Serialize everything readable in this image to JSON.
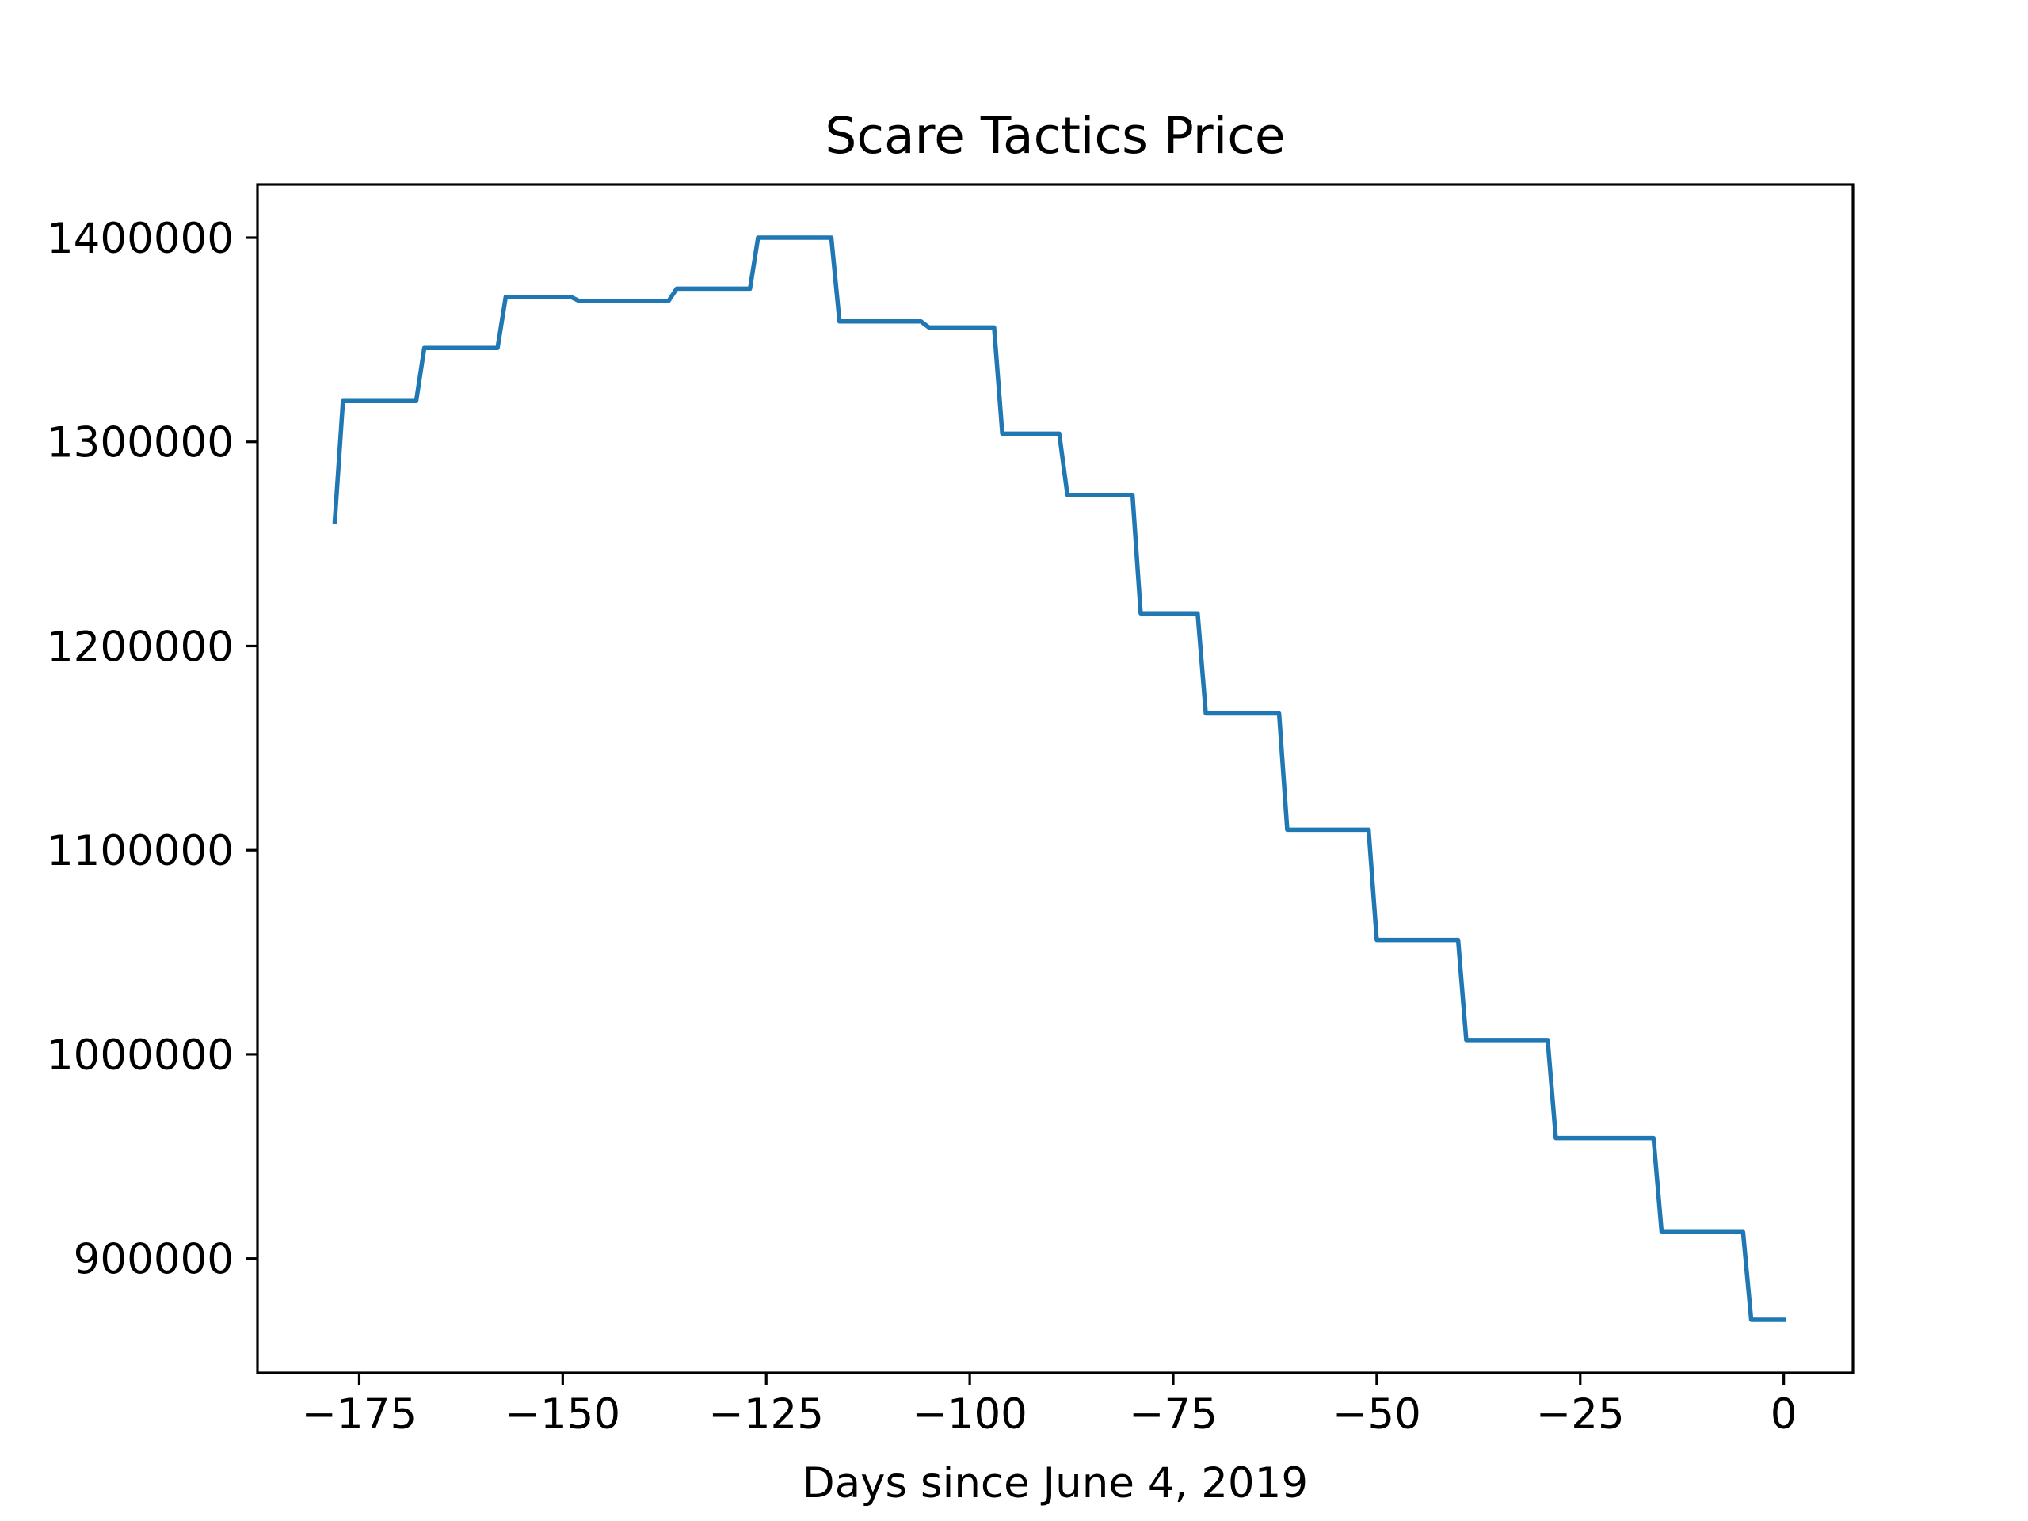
{
  "chart_data": {
    "type": "line",
    "title": "Scare Tactics Price",
    "xlabel": "Days since June 4, 2019",
    "ylabel": "",
    "xlim": [
      -187.5,
      8.5
    ],
    "ylim": [
      844000,
      1426000
    ],
    "grid": false,
    "x_ticks": [
      -175,
      -150,
      -125,
      -100,
      -75,
      -50,
      -25,
      0
    ],
    "x_tick_labels": [
      "−175",
      "−150",
      "−125",
      "−100",
      "−75",
      "−50",
      "−25",
      "0"
    ],
    "y_ticks": [
      900000,
      1000000,
      1100000,
      1200000,
      1300000,
      1400000
    ],
    "y_tick_labels": [
      "900000",
      "1000000",
      "1100000",
      "1200000",
      "1300000",
      "1400000"
    ],
    "series": [
      {
        "name": "",
        "color": "#1f77b4",
        "x": [
          -178,
          -177,
          -168,
          -167,
          -158,
          -157,
          -149,
          -148,
          -137,
          -136,
          -127,
          -126,
          -117,
          -116,
          -106,
          -105,
          -97,
          -96,
          -89,
          -88,
          -80,
          -79,
          -72,
          -71,
          -62,
          -61,
          -51,
          -50,
          -40,
          -39,
          -29,
          -28,
          -16,
          -15,
          -5,
          -4,
          0
        ],
        "y": [
          1261000,
          1320000,
          1320000,
          1346000,
          1346000,
          1371000,
          1371000,
          1369000,
          1369000,
          1375000,
          1375000,
          1400000,
          1400000,
          1359000,
          1359000,
          1356000,
          1356000,
          1304000,
          1304000,
          1274000,
          1274000,
          1216000,
          1216000,
          1167000,
          1167000,
          1110000,
          1110000,
          1056000,
          1056000,
          1007000,
          1007000,
          959000,
          959000,
          913000,
          913000,
          870000,
          870000
        ]
      }
    ]
  }
}
